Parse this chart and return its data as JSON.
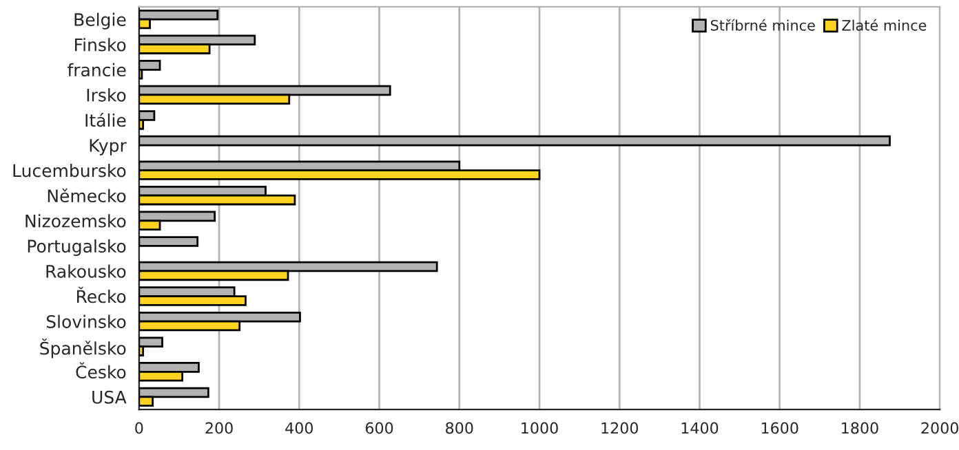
{
  "chart_data": {
    "type": "bar",
    "orientation": "horizontal",
    "categories": [
      "Belgie",
      "Finsko",
      "francie",
      "Irsko",
      "Itálie",
      "Kypr",
      "Lucembursko",
      "Německo",
      "Nizozemsko",
      "Portugalsko",
      "Rakousko",
      "Řecko",
      "Slovinsko",
      "Španělsko",
      "Česko",
      "USA"
    ],
    "series": [
      {
        "name": "Stříbrné mince",
        "color": "#b2b2b2",
        "values": [
          196,
          289,
          52,
          627,
          38,
          1875,
          800,
          316,
          189,
          146,
          744,
          238,
          402,
          58,
          149,
          173
        ]
      },
      {
        "name": "Zlaté mince",
        "color": "#ffd320",
        "values": [
          27,
          176,
          7,
          375,
          10,
          null,
          1000,
          389,
          52,
          null,
          372,
          266,
          251,
          10,
          108,
          34
        ]
      }
    ],
    "xlim": [
      0,
      2000
    ],
    "xticks": [
      0,
      200,
      400,
      600,
      800,
      1000,
      1200,
      1400,
      1600,
      1800,
      2000
    ],
    "grid": "x",
    "legend": "top right"
  }
}
